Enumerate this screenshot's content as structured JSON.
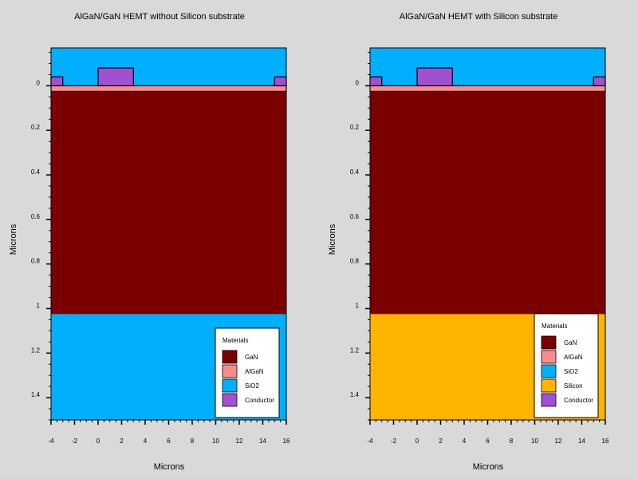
{
  "colors": {
    "background": "#d9d9d9",
    "GaN": "#7a0000",
    "AlGaN": "#fa8c8c",
    "SiO2": "#00b0ff",
    "Silicon": "#ffb400",
    "Conductor": "#a050d0"
  },
  "chart_data": [
    {
      "type": "diagram",
      "title": "AlGaN/GaN HEMT without Silicon substrate",
      "xlabel": "Microns",
      "ylabel": "Microns",
      "xlim": [
        -4,
        16
      ],
      "ylim": [
        -0.17,
        1.5
      ],
      "y_inverted": true,
      "x_ticks": [
        "-4",
        "-2",
        "0",
        "2",
        "4",
        "6",
        "8",
        "10",
        "12",
        "14",
        "16"
      ],
      "y_ticks": [
        "0",
        "0.2",
        "0.4",
        "0.6",
        "0.8",
        "1",
        "1.2",
        "1.4"
      ],
      "regions": [
        {
          "material": "SiO2",
          "x": [
            -4,
            16
          ],
          "y": [
            -0.17,
            0.0
          ]
        },
        {
          "material": "AlGaN",
          "x": [
            -4,
            16
          ],
          "y": [
            0.0,
            0.025
          ]
        },
        {
          "material": "GaN",
          "x": [
            -4,
            16
          ],
          "y": [
            0.025,
            1.025
          ]
        },
        {
          "material": "SiO2",
          "x": [
            -4,
            16
          ],
          "y": [
            1.025,
            1.5
          ]
        },
        {
          "material": "Conductor",
          "x": [
            -4,
            -3
          ],
          "y": [
            -0.04,
            0.0
          ]
        },
        {
          "material": "Conductor",
          "x": [
            0,
            3
          ],
          "y": [
            -0.08,
            0.0
          ]
        },
        {
          "material": "Conductor",
          "x": [
            15,
            16
          ],
          "y": [
            -0.04,
            0.0
          ]
        }
      ],
      "legend": {
        "title": "Materials",
        "position": "bottom-right",
        "items": [
          "GaN",
          "AlGaN",
          "SiO2",
          "Conductor"
        ]
      }
    },
    {
      "type": "diagram",
      "title": "AlGaN/GaN HEMT with Silicon substrate",
      "xlabel": "Microns",
      "ylabel": "Microns",
      "xlim": [
        -4,
        16
      ],
      "ylim": [
        -0.17,
        1.5
      ],
      "y_inverted": true,
      "x_ticks": [
        "-4",
        "-2",
        "0",
        "2",
        "4",
        "6",
        "8",
        "10",
        "12",
        "14",
        "16"
      ],
      "y_ticks": [
        "0",
        "0.2",
        "0.4",
        "0.6",
        "0.8",
        "1",
        "1.2",
        "1.4"
      ],
      "regions": [
        {
          "material": "SiO2",
          "x": [
            -4,
            16
          ],
          "y": [
            -0.17,
            0.0
          ]
        },
        {
          "material": "AlGaN",
          "x": [
            -4,
            16
          ],
          "y": [
            0.0,
            0.025
          ]
        },
        {
          "material": "GaN",
          "x": [
            -4,
            16
          ],
          "y": [
            0.025,
            1.025
          ]
        },
        {
          "material": "Silicon",
          "x": [
            -4,
            16
          ],
          "y": [
            1.025,
            1.5
          ]
        },
        {
          "material": "Conductor",
          "x": [
            -4,
            -3
          ],
          "y": [
            -0.04,
            0.0
          ]
        },
        {
          "material": "Conductor",
          "x": [
            0,
            3
          ],
          "y": [
            -0.08,
            0.0
          ]
        },
        {
          "material": "Conductor",
          "x": [
            15,
            16
          ],
          "y": [
            -0.04,
            0.0
          ]
        }
      ],
      "legend": {
        "title": "Materials",
        "position": "bottom-right",
        "items": [
          "GaN",
          "AlGaN",
          "SiO2",
          "Silicon",
          "Conductor"
        ]
      }
    }
  ]
}
